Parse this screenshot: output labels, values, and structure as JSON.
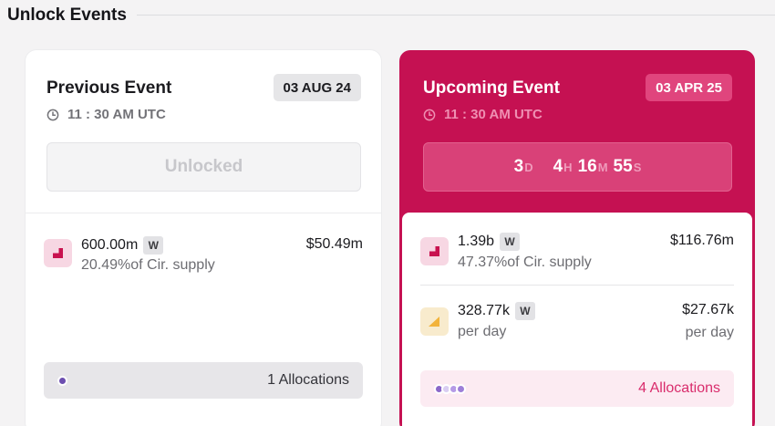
{
  "page": {
    "title": "Unlock Events"
  },
  "previous": {
    "title": "Previous Event",
    "date": "03 AUG 24",
    "time": "11 : 30 AM UTC",
    "status": "Unlocked",
    "rows": [
      {
        "icon": "pink-unlock-icon",
        "amount": "600.00m",
        "token_badge": "W",
        "sub": "20.49%of Cir. supply",
        "value": "$50.49m"
      }
    ],
    "allocations": {
      "label": "1 Allocations",
      "dot_colors": [
        "#6d4fb0"
      ]
    }
  },
  "upcoming": {
    "title": "Upcoming Event",
    "date": "03 APR 25",
    "time": "11 : 30 AM UTC",
    "countdown": {
      "days": "3",
      "days_unit": "D",
      "hours": "4",
      "hours_unit": "H",
      "minutes": "16",
      "minutes_unit": "M",
      "seconds": "55",
      "seconds_unit": "S"
    },
    "rows": [
      {
        "icon": "pink-unlock-icon",
        "amount": "1.39b",
        "token_badge": "W",
        "sub": "47.37%of Cir. supply",
        "value": "$116.76m"
      },
      {
        "icon": "amber-linear-icon",
        "amount": "328.77k",
        "token_badge": "W",
        "sub": "per day",
        "value": "$27.67k",
        "value_sub": "per day"
      }
    ],
    "allocations": {
      "label": "4 Allocations",
      "dot_colors": [
        "#8a68c9",
        "#d9cdf2",
        "#b59ae6",
        "#9d7fd8"
      ]
    }
  },
  "colors": {
    "accent": "#c51152",
    "accent_light": "#fcebf2",
    "icon_pink": "#c8124f",
    "icon_amber": "#f2b33a"
  }
}
